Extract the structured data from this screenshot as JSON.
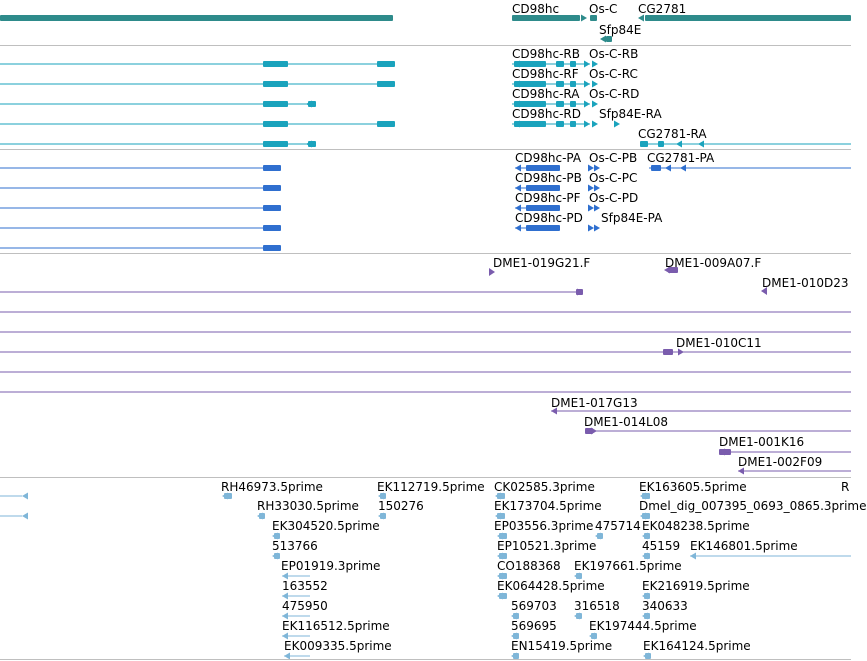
{
  "colors": {
    "gene": "#2e8b8b",
    "transcript_ensembl": "#1aa3bd",
    "transcript_refseq": "#2f6fcf",
    "clone": "#7a5cad",
    "est": "#7fb6d8",
    "divider": "#bfbfbf"
  },
  "tracks": {
    "genes": {
      "labels": [
        "CD98hc",
        "Os-C",
        "CG2781",
        "Sfp84E"
      ]
    },
    "transcripts_a": {
      "labels": [
        "CD98hc-RB",
        "Os-C-RB",
        "CD98hc-RF",
        "Os-C-RC",
        "CD98hc-RA",
        "Os-C-RD",
        "CD98hc-RD",
        "Sfp84E-RA",
        "CG2781-RA"
      ]
    },
    "transcripts_b": {
      "labels": [
        "CD98hc-PA",
        "Os-C-PB",
        "CG2781-PA",
        "CD98hc-PB",
        "Os-C-PC",
        "CD98hc-PF",
        "Os-C-PD",
        "CD98hc-PD",
        "Sfp84E-PA"
      ]
    },
    "clones": {
      "labels": [
        "DME1-019G21.F",
        "DME1-009A07.F",
        "DME1-010D23",
        "DME1-010C11",
        "DME1-017G13",
        "DME1-014L08",
        "DME1-001K16",
        "DME1-002F09"
      ]
    },
    "ests": {
      "labels": [
        "RH46973.5prime",
        "EK112719.5prime",
        "CK02585.3prime",
        "EK163605.5prime",
        "R",
        "RH33030.5prime",
        "150276",
        "EK173704.5prime",
        "Dmel_dig_007395_0693_0865.3prime",
        "EK304520.5prime",
        "EP03556.3prime",
        "475714",
        "EK048238.5prime",
        "513766",
        "EP10521.3prime",
        "45159",
        "EK146801.5prime",
        "EP01919.3prime",
        "CO188368",
        "EK197661.5prime",
        "163552",
        "EK064428.5prime",
        "EK216919.5prime",
        "475950",
        "569703",
        "316518",
        "340633",
        "EK116512.5prime",
        "569695",
        "EK197444.5prime",
        "EK009335.5prime",
        "EN15419.5prime",
        "EK164124.5prime"
      ]
    }
  }
}
